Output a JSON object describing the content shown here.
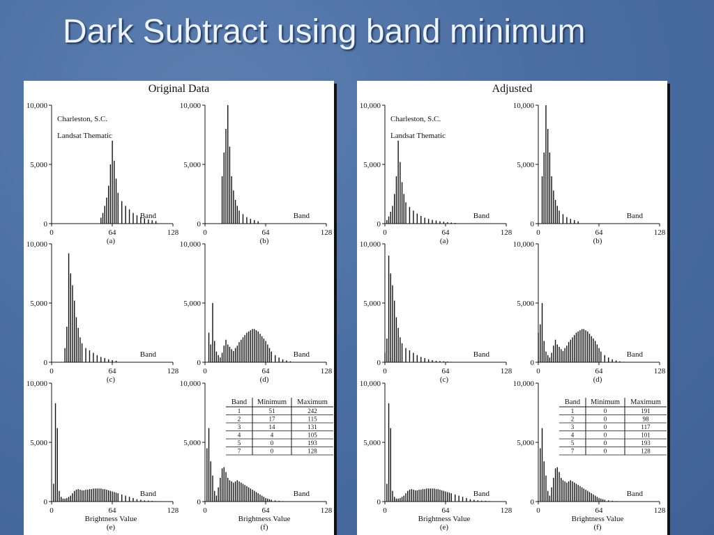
{
  "slide": {
    "title": "Dark Subtract using band minimum"
  },
  "charts": [
    {
      "title": "Original Data",
      "caption": [
        "Charleston, S.C.",
        "Landsat  Thematic"
      ],
      "table": {
        "headers": [
          "Band",
          "Minimum",
          "Maximum"
        ],
        "rows": [
          [
            "1",
            "51",
            "242"
          ],
          [
            "2",
            "17",
            "115"
          ],
          [
            "3",
            "14",
            "131"
          ],
          [
            "4",
            "4",
            "105"
          ],
          [
            "5",
            "0",
            "193"
          ],
          [
            "7",
            "0",
            "128"
          ]
        ]
      }
    },
    {
      "title": "Adjusted",
      "caption": [
        "Charleston, S.C.",
        "Landsat  Thematic"
      ],
      "table": {
        "headers": [
          "Band",
          "Minimum",
          "Maximum"
        ],
        "rows": [
          [
            "1",
            "0",
            "191"
          ],
          [
            "2",
            "0",
            "98"
          ],
          [
            "3",
            "0",
            "117"
          ],
          [
            "4",
            "0",
            "101"
          ],
          [
            "5",
            "0",
            "193"
          ],
          [
            "7",
            "0",
            "128"
          ]
        ]
      }
    }
  ],
  "chart_data": [
    {
      "type": "bar",
      "title": "Original Data",
      "ylim": [
        0,
        10000
      ],
      "xlim": [
        0,
        128
      ],
      "xticks": [
        "0",
        "64",
        "128"
      ],
      "yticks": [
        "0",
        "5,000",
        "10,000"
      ],
      "band_label": "Band",
      "xlabel": "Brightness Value",
      "panels": [
        {
          "label": "(a)",
          "x": [
            52,
            54,
            56,
            58,
            60,
            62,
            64,
            66,
            68,
            70,
            74,
            78,
            82,
            86,
            90,
            94,
            98,
            102,
            106,
            110
          ],
          "y": [
            500,
            900,
            1500,
            2200,
            3200,
            5000,
            7000,
            5300,
            3800,
            2600,
            1900,
            1500,
            1200,
            900,
            700,
            550,
            450,
            350,
            280,
            220
          ]
        },
        {
          "label": "(b)",
          "x": [
            18,
            20,
            22,
            24,
            26,
            28,
            30,
            32,
            34,
            36,
            40,
            44,
            48,
            52,
            56
          ],
          "y": [
            4000,
            6000,
            8000,
            10000,
            6500,
            4000,
            2800,
            2000,
            1500,
            1100,
            800,
            550,
            400,
            300,
            200
          ]
        },
        {
          "label": "(c)",
          "x": [
            14,
            16,
            18,
            20,
            22,
            24,
            26,
            28,
            30,
            32,
            36,
            40,
            44,
            48,
            52,
            56,
            60,
            64,
            68
          ],
          "y": [
            1200,
            3000,
            9200,
            7500,
            6500,
            5200,
            3800,
            2900,
            2100,
            1600,
            1200,
            1000,
            800,
            600,
            450,
            350,
            250,
            180,
            120
          ]
        },
        {
          "label": "(d)",
          "x": [
            4,
            6,
            8,
            10,
            12,
            14,
            16,
            18,
            20,
            22,
            24,
            26,
            28,
            30,
            32,
            34,
            36,
            38,
            40,
            42,
            44,
            46,
            48,
            50,
            52,
            54,
            56,
            58,
            60,
            62,
            64,
            66,
            68,
            70,
            74,
            78,
            82,
            86,
            90
          ],
          "y": [
            2500,
            1500,
            5000,
            1800,
            900,
            600,
            400,
            800,
            1400,
            1900,
            1500,
            1300,
            1100,
            950,
            1200,
            1400,
            1700,
            1900,
            2100,
            2300,
            2500,
            2600,
            2700,
            2800,
            2800,
            2700,
            2600,
            2400,
            2200,
            2000,
            1800,
            1500,
            1200,
            900,
            600,
            400,
            250,
            150,
            80
          ]
        },
        {
          "label": "(e)",
          "x": [
            2,
            4,
            6,
            8,
            10,
            12,
            14,
            16,
            18,
            20,
            22,
            24,
            26,
            28,
            30,
            32,
            34,
            36,
            38,
            40,
            42,
            44,
            46,
            48,
            50,
            52,
            54,
            56,
            58,
            60,
            62,
            64,
            66,
            68,
            70,
            74,
            78,
            82,
            86,
            90,
            94,
            98,
            102,
            106,
            110,
            114,
            118
          ],
          "y": [
            1500,
            8300,
            6200,
            900,
            400,
            250,
            250,
            300,
            400,
            500,
            700,
            900,
            1000,
            1050,
            1000,
            950,
            950,
            1000,
            1000,
            1050,
            1050,
            1100,
            1100,
            1100,
            1100,
            1100,
            1050,
            1050,
            1000,
            950,
            900,
            850,
            800,
            750,
            700,
            600,
            500,
            400,
            300,
            200,
            150,
            100,
            80,
            60,
            40,
            30,
            20
          ]
        },
        {
          "label": "(f)",
          "x": [
            2,
            4,
            6,
            8,
            10,
            12,
            14,
            16,
            18,
            20,
            22,
            24,
            26,
            28,
            30,
            32,
            34,
            36,
            38,
            40,
            42,
            44,
            46,
            48,
            50,
            52,
            54,
            56,
            58,
            60,
            62,
            64,
            66,
            68,
            70,
            74,
            78,
            82,
            86
          ],
          "y": [
            4500,
            6200,
            3400,
            2200,
            900,
            500,
            1200,
            2000,
            2800,
            2900,
            2500,
            2000,
            1800,
            1700,
            1600,
            1700,
            1800,
            1700,
            1600,
            1500,
            1400,
            1300,
            1200,
            1100,
            1000,
            900,
            800,
            700,
            600,
            500,
            400,
            300,
            250,
            200,
            150,
            100,
            60,
            40,
            20
          ]
        }
      ]
    },
    {
      "type": "bar",
      "title": "Adjusted",
      "ylim": [
        0,
        10000
      ],
      "xlim": [
        0,
        128
      ],
      "xticks": [
        "0",
        "64",
        "128"
      ],
      "yticks": [
        "0",
        "5,000",
        "10,000"
      ],
      "band_label": "Band",
      "xlabel": "Brightness Value",
      "panels": [
        {
          "label": "(a)",
          "x": [
            2,
            4,
            6,
            8,
            10,
            12,
            14,
            16,
            18,
            20,
            22,
            26,
            30,
            34,
            38,
            42,
            46,
            50,
            54,
            58,
            62,
            66,
            70,
            74
          ],
          "y": [
            300,
            600,
            1000,
            1500,
            2500,
            4000,
            7000,
            5200,
            3500,
            2500,
            1800,
            1400,
            1100,
            850,
            650,
            500,
            400,
            320,
            260,
            200,
            160,
            120,
            90,
            60
          ]
        },
        {
          "label": "(b)",
          "x": [
            4,
            6,
            8,
            10,
            12,
            14,
            16,
            18,
            20,
            22,
            26,
            30,
            34,
            38,
            42
          ],
          "y": [
            4000,
            6000,
            10000,
            8000,
            6000,
            4000,
            2800,
            2000,
            1500,
            1100,
            800,
            550,
            400,
            300,
            200
          ]
        },
        {
          "label": "(c)",
          "x": [
            0,
            2,
            4,
            6,
            8,
            10,
            12,
            14,
            16,
            18,
            22,
            26,
            30,
            34,
            38,
            42,
            46,
            50,
            54,
            58,
            62,
            66,
            70
          ],
          "y": [
            800,
            2000,
            9000,
            7500,
            6500,
            5200,
            3800,
            2900,
            2100,
            1600,
            1200,
            1000,
            800,
            600,
            450,
            350,
            250,
            180,
            120,
            100,
            80,
            60,
            40
          ]
        },
        {
          "label": "(d)",
          "x": [
            0,
            2,
            4,
            6,
            8,
            10,
            12,
            14,
            16,
            18,
            20,
            22,
            24,
            26,
            28,
            30,
            32,
            34,
            36,
            38,
            40,
            42,
            44,
            46,
            48,
            50,
            52,
            54,
            56,
            58,
            60,
            62,
            64,
            66,
            70,
            74,
            78,
            82,
            86,
            90
          ],
          "y": [
            2500,
            3200,
            5000,
            1800,
            900,
            600,
            400,
            800,
            1400,
            1900,
            1500,
            1300,
            1100,
            950,
            1200,
            1400,
            1700,
            1900,
            2100,
            2300,
            2500,
            2600,
            2700,
            2800,
            2800,
            2700,
            2600,
            2400,
            2200,
            2000,
            1800,
            1500,
            1200,
            900,
            600,
            400,
            250,
            150,
            80,
            40
          ]
        },
        {
          "label": "(e)",
          "x": [
            2,
            4,
            6,
            8,
            10,
            12,
            14,
            16,
            18,
            20,
            22,
            24,
            26,
            28,
            30,
            32,
            34,
            36,
            38,
            40,
            42,
            44,
            46,
            48,
            50,
            52,
            54,
            56,
            58,
            60,
            62,
            64,
            66,
            68,
            70,
            74,
            78,
            82,
            86,
            90,
            94,
            98,
            102,
            106,
            110,
            114,
            118
          ],
          "y": [
            1500,
            8300,
            6200,
            900,
            400,
            250,
            250,
            300,
            400,
            500,
            700,
            900,
            1000,
            1050,
            1000,
            950,
            950,
            1000,
            1000,
            1050,
            1050,
            1100,
            1100,
            1100,
            1100,
            1100,
            1050,
            1050,
            1000,
            950,
            900,
            850,
            800,
            750,
            700,
            600,
            500,
            400,
            300,
            200,
            150,
            100,
            80,
            60,
            40,
            30,
            20
          ]
        },
        {
          "label": "(f)",
          "x": [
            2,
            4,
            6,
            8,
            10,
            12,
            14,
            16,
            18,
            20,
            22,
            24,
            26,
            28,
            30,
            32,
            34,
            36,
            38,
            40,
            42,
            44,
            46,
            48,
            50,
            52,
            54,
            56,
            58,
            60,
            62,
            64,
            66,
            68,
            70,
            74,
            78,
            82,
            86
          ],
          "y": [
            4500,
            6200,
            3400,
            2200,
            900,
            500,
            1200,
            2000,
            2800,
            2900,
            2500,
            2000,
            1800,
            1700,
            1600,
            1700,
            1800,
            1700,
            1600,
            1500,
            1400,
            1300,
            1200,
            1100,
            1000,
            900,
            800,
            700,
            600,
            500,
            400,
            300,
            250,
            200,
            150,
            100,
            60,
            40,
            20
          ]
        }
      ]
    }
  ]
}
